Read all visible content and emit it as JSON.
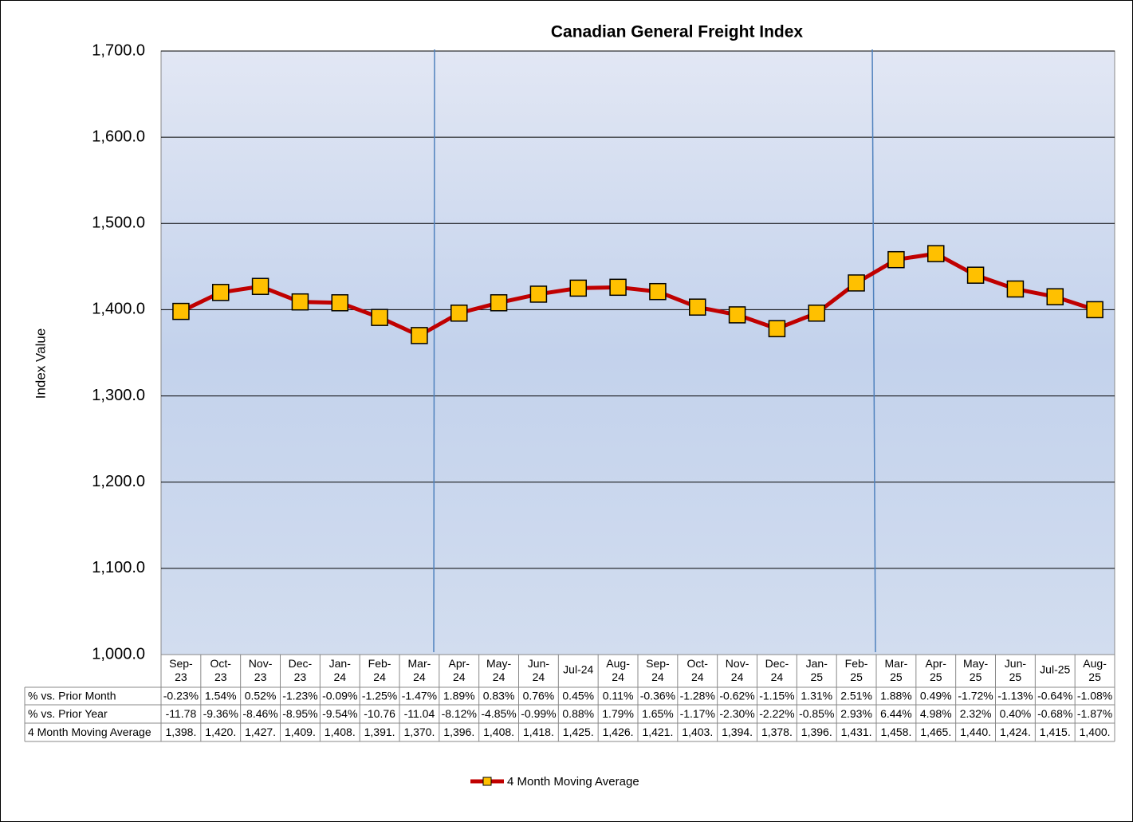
{
  "chart_data": {
    "type": "line",
    "title": "Canadian General Freight Index",
    "y_label": "Index Value",
    "categories": [
      "Sep-23",
      "Oct-23",
      "Nov-23",
      "Dec-23",
      "Jan-24",
      "Feb-24",
      "Mar-24",
      "Apr-24",
      "May-24",
      "Jun-24",
      "Jul-24",
      "Aug-24",
      "Sep-24",
      "Oct-24",
      "Nov-24",
      "Dec-24",
      "Jan-25",
      "Feb-25",
      "Mar-25",
      "Apr-25",
      "May-25",
      "Jun-25",
      "Jul-25",
      "Aug-25"
    ],
    "series": [
      {
        "name": "4 Month Moving Average",
        "color": "#c00000",
        "marker_color": "#ffc000",
        "values": [
          1398,
          1420,
          1427,
          1409,
          1408,
          1391,
          1370,
          1396,
          1408,
          1418,
          1425,
          1426,
          1421,
          1403,
          1394,
          1378,
          1396,
          1431,
          1458,
          1465,
          1440,
          1424,
          1415,
          1400
        ],
        "value_labels": [
          "1,398.",
          "1,420.",
          "1,427.",
          "1,409.",
          "1,408.",
          "1,391.",
          "1,370.",
          "1,396.",
          "1,408.",
          "1,418.",
          "1,425.",
          "1,426.",
          "1,421.",
          "1,403.",
          "1,394.",
          "1,378.",
          "1,396.",
          "1,431.",
          "1,458.",
          "1,465.",
          "1,440.",
          "1,424.",
          "1,415.",
          "1,400."
        ]
      }
    ],
    "table_rows": [
      {
        "name": "% vs. Prior Month",
        "values": [
          "-0.23%",
          "1.54%",
          "0.52%",
          "-1.23%",
          "-0.09%",
          "-1.25%",
          "-1.47%",
          "1.89%",
          "0.83%",
          "0.76%",
          "0.45%",
          "0.11%",
          "-0.36%",
          "-1.28%",
          "-0.62%",
          "-1.15%",
          "1.31%",
          "2.51%",
          "1.88%",
          "0.49%",
          "-1.72%",
          "-1.13%",
          "-0.64%",
          "-1.08%"
        ]
      },
      {
        "name": "% vs. Prior Year",
        "values": [
          "-11.78",
          "-9.36%",
          "-8.46%",
          "-8.95%",
          "-9.54%",
          "-10.76",
          "-11.04",
          "-8.12%",
          "-4.85%",
          "-0.99%",
          "0.88%",
          "1.79%",
          "1.65%",
          "-1.17%",
          "-2.30%",
          "-2.22%",
          "-0.85%",
          "2.93%",
          "6.44%",
          "4.98%",
          "2.32%",
          "0.40%",
          "-0.68%",
          "-1.87%"
        ]
      }
    ],
    "ylim": [
      1000,
      1700
    ],
    "yticks": [
      {
        "value": 1000,
        "label": "1,000.0"
      },
      {
        "value": 1100,
        "label": "1,100.0"
      },
      {
        "value": 1200,
        "label": "1,200.0"
      },
      {
        "value": 1300,
        "label": "1,300.0"
      },
      {
        "value": 1400,
        "label": "1,400.0"
      },
      {
        "value": 1500,
        "label": "1,500.0"
      },
      {
        "value": 1600,
        "label": "1,600.0"
      },
      {
        "value": 1700,
        "label": "1,700.0"
      }
    ],
    "grid": true
  }
}
